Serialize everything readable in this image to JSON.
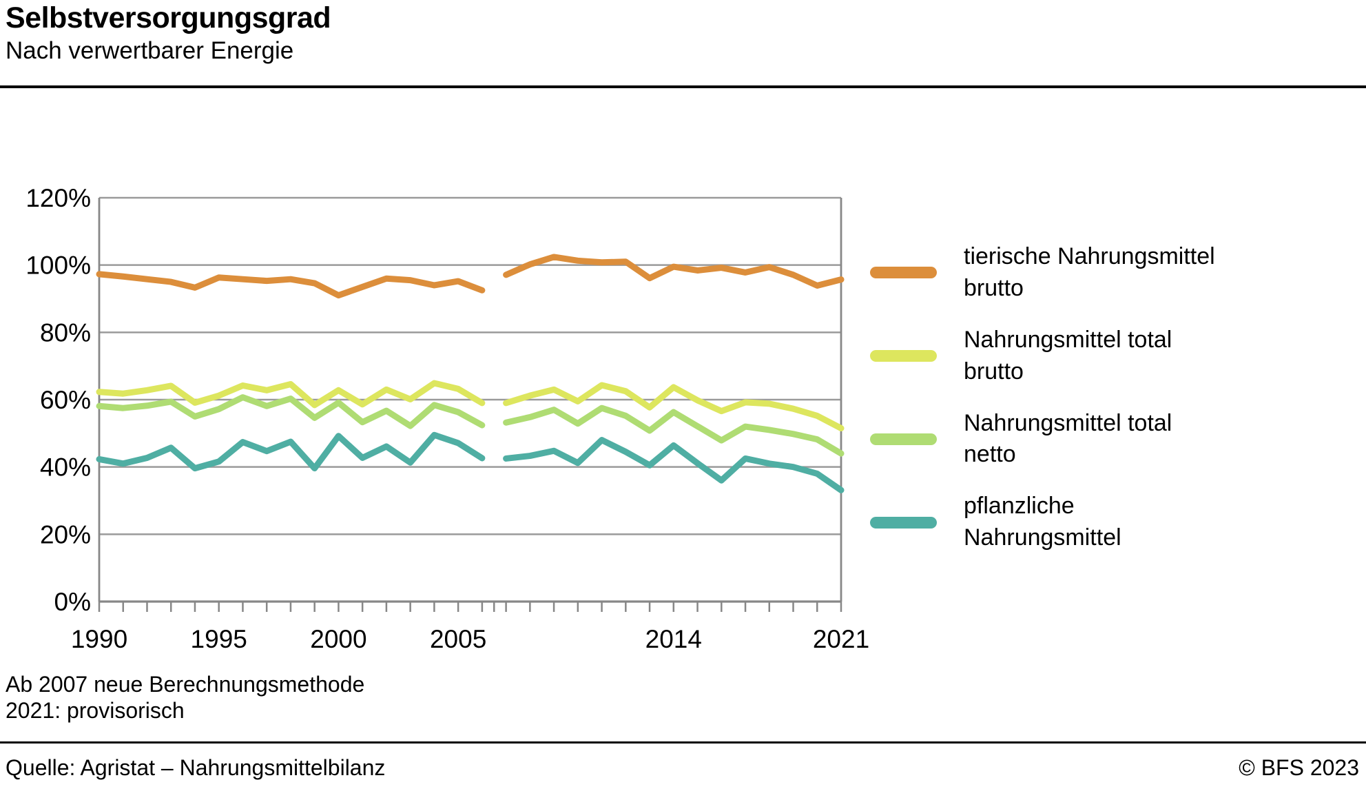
{
  "header": {
    "title": "Selbstversorgungsgrad",
    "subtitle": "Nach verwertbarer Energie"
  },
  "footnotes": {
    "line1": "Ab 2007 neue Berechnungsmethode",
    "line2": "2021: provisorisch"
  },
  "footer": {
    "source": "Quelle: Agristat – Nahrungsmittelbilanz",
    "copyright": "© BFS 2023"
  },
  "colors": {
    "grid": "#9a9a9a",
    "axis": "#878787",
    "text": "#000000"
  },
  "chart_data": {
    "type": "line",
    "title": "Selbstversorgungsgrad — Nach verwertbarer Energie",
    "x_range": [
      1990,
      2021
    ],
    "ylim": [
      0,
      120
    ],
    "grid": true,
    "legend_position": "right",
    "yticks": [
      0,
      20,
      40,
      60,
      80,
      100,
      120
    ],
    "y_tick_labels": [
      "0%",
      "20%",
      "40%",
      "60%",
      "80%",
      "100%",
      "120%"
    ],
    "xticks_all_years": true,
    "axis_break_between": [
      2006,
      2007
    ],
    "xticks_labeled": [
      1990,
      1995,
      2000,
      2005,
      2014,
      2021
    ],
    "x_tick_labels": [
      "1990",
      "1995",
      "2000",
      "2005",
      "2014",
      "2021"
    ],
    "legend": [
      {
        "line1": "tierische Nahrungsmittel",
        "line2": "brutto"
      },
      {
        "line1": "Nahrungsmittel total",
        "line2": "brutto"
      },
      {
        "line1": "Nahrungsmittel total",
        "line2": "netto"
      },
      {
        "line1": "pflanzliche",
        "line2": "Nahrungsmittel"
      }
    ],
    "series": [
      {
        "name": "tierische Nahrungsmittel brutto",
        "color": "#dc8e3b",
        "segments": [
          {
            "start_year": 1990,
            "values": [
              97.3,
              96.6,
              95.8,
              95.0,
              93.3,
              96.3,
              95.8,
              95.3,
              95.8,
              94.6,
              91.0,
              93.5,
              96.0,
              95.5,
              94.0,
              95.2,
              92.5
            ]
          },
          {
            "start_year": 2007,
            "values": [
              97.1,
              100.2,
              102.4,
              101.3,
              100.8,
              101.0,
              96.1,
              99.5,
              98.4,
              99.2,
              97.8,
              99.4,
              97.1,
              93.9,
              95.7
            ]
          }
        ]
      },
      {
        "name": "Nahrungsmittel total brutto",
        "color": "#dde65e",
        "segments": [
          {
            "start_year": 1990,
            "values": [
              62.3,
              61.8,
              62.8,
              64.1,
              59.1,
              61.2,
              64.2,
              62.8,
              64.6,
              58.4,
              62.8,
              58.6,
              63.0,
              60.1,
              64.9,
              63.2,
              59.0
            ]
          },
          {
            "start_year": 2007,
            "values": [
              59.0,
              61.2,
              63.0,
              59.5,
              64.3,
              62.5,
              57.7,
              63.7,
              59.8,
              56.6,
              59.2,
              58.8,
              57.3,
              55.2,
              51.5
            ]
          }
        ]
      },
      {
        "name": "Nahrungsmittel total netto",
        "color": "#afdc73",
        "segments": [
          {
            "start_year": 1990,
            "values": [
              58.1,
              57.5,
              58.2,
              59.4,
              55.0,
              57.2,
              60.7,
              58.1,
              60.3,
              54.6,
              59.1,
              53.3,
              56.7,
              52.2,
              58.4,
              56.3,
              52.4
            ]
          },
          {
            "start_year": 2007,
            "values": [
              53.2,
              54.8,
              57.0,
              52.9,
              57.5,
              55.2,
              50.8,
              56.3,
              52.1,
              47.9,
              52.0,
              51.0,
              49.8,
              48.2,
              44.0
            ]
          }
        ]
      },
      {
        "name": "pflanzliche Nahrungsmittel",
        "color": "#4faea3",
        "segments": [
          {
            "start_year": 1990,
            "values": [
              42.3,
              41.0,
              42.7,
              45.7,
              39.6,
              41.6,
              47.4,
              44.7,
              47.5,
              39.6,
              49.2,
              42.7,
              46.1,
              41.3,
              49.5,
              47.1,
              42.6
            ]
          },
          {
            "start_year": 2007,
            "values": [
              42.5,
              43.3,
              44.8,
              41.2,
              48.0,
              44.5,
              40.5,
              46.4,
              41.1,
              36.0,
              42.5,
              41.0,
              40.0,
              38.0,
              33.1
            ]
          }
        ]
      }
    ]
  }
}
